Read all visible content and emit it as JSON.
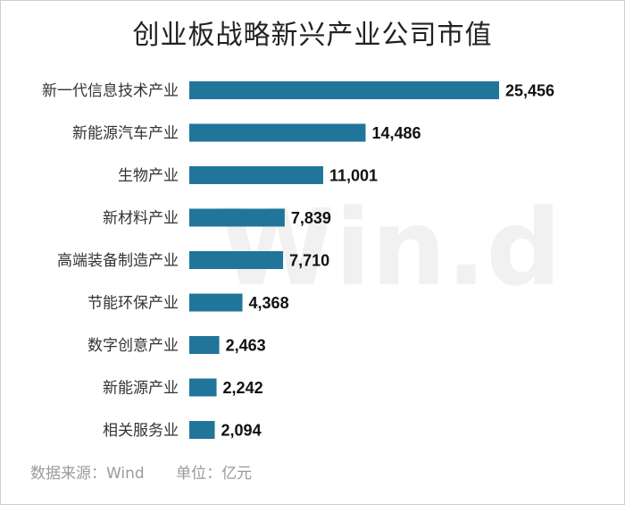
{
  "chart_data": {
    "type": "bar",
    "orientation": "horizontal",
    "title": "创业板战略新兴产业公司市值",
    "categories": [
      "新一代信息技术产业",
      "新能源汽车产业",
      "生物产业",
      "新材料产业",
      "高端装备制造产业",
      "节能环保产业",
      "数字创意产业",
      "新能源产业",
      "相关服务业"
    ],
    "values": [
      25456,
      14486,
      11001,
      7839,
      7710,
      4368,
      2463,
      2242,
      2094
    ],
    "value_labels": [
      "25,456",
      "14,486",
      "11,001",
      "7,839",
      "7,710",
      "4,368",
      "2,463",
      "2,242",
      "2,094"
    ],
    "bar_color": "#21759b",
    "grid": false,
    "legend": "none",
    "xlim": [
      0,
      25456
    ]
  },
  "watermark": "Win.d",
  "footer": {
    "source": "数据来源：Wind",
    "unit": "单位：亿元"
  }
}
